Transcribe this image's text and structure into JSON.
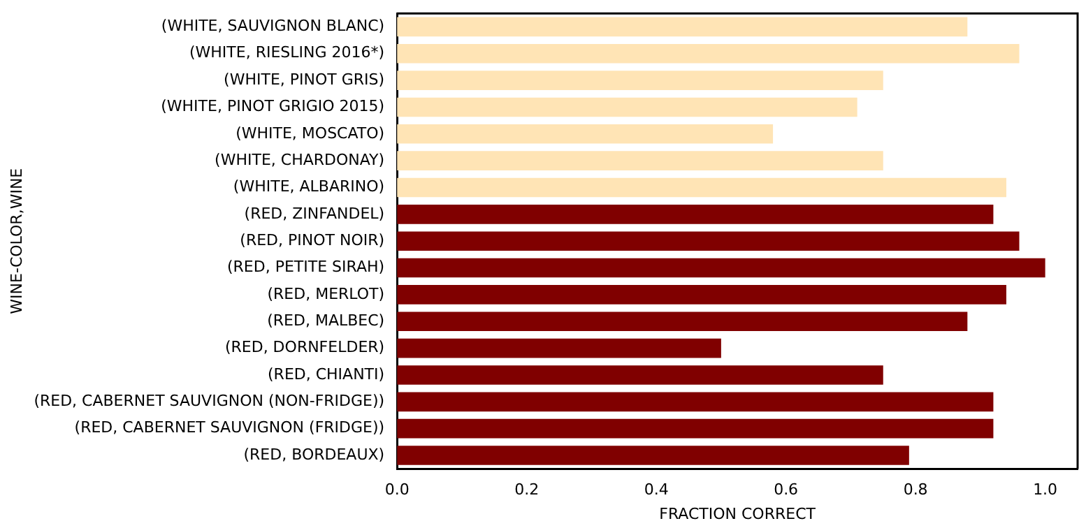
{
  "chart_data": {
    "type": "bar",
    "orientation": "horizontal",
    "xlabel": "FRACTION CORRECT",
    "ylabel": "WINE-COLOR,WINE",
    "categories": [
      "(WHITE, SAUVIGNON BLANC)",
      "(WHITE, RIESLING 2016*)",
      "(WHITE, PINOT GRIS)",
      "(WHITE, PINOT GRIGIO 2015)",
      "(WHITE, MOSCATO)",
      "(WHITE, CHARDONAY)",
      "(WHITE, ALBARINO)",
      "(RED, ZINFANDEL)",
      "(RED, PINOT NOIR)",
      "(RED, PETITE SIRAH)",
      "(RED, MERLOT)",
      "(RED, MALBEC)",
      "(RED, DORNFELDER)",
      "(RED, CHIANTI)",
      "(RED, CABERNET SAUVIGNON (NON-FRIDGE))",
      "(RED, CABERNET SAUVIGNON (FRIDGE))",
      "(RED, BORDEAUX)"
    ],
    "values": [
      0.88,
      0.96,
      0.75,
      0.71,
      0.58,
      0.75,
      0.94,
      0.92,
      0.96,
      1.0,
      0.94,
      0.88,
      0.5,
      0.75,
      0.92,
      0.92,
      0.79
    ],
    "colors": [
      "#ffe4b5",
      "#ffe4b5",
      "#ffe4b5",
      "#ffe4b5",
      "#ffe4b5",
      "#ffe4b5",
      "#ffe4b5",
      "#800000",
      "#800000",
      "#800000",
      "#800000",
      "#800000",
      "#800000",
      "#800000",
      "#800000",
      "#800000",
      "#800000"
    ],
    "xlim": [
      0,
      1.05
    ],
    "xticks": [
      {
        "value": 0,
        "label": "0.0"
      },
      0.2,
      0.4,
      0.6,
      0.8,
      {
        "value": 1,
        "label": "1.0"
      }
    ],
    "grid": false,
    "legend": false
  }
}
